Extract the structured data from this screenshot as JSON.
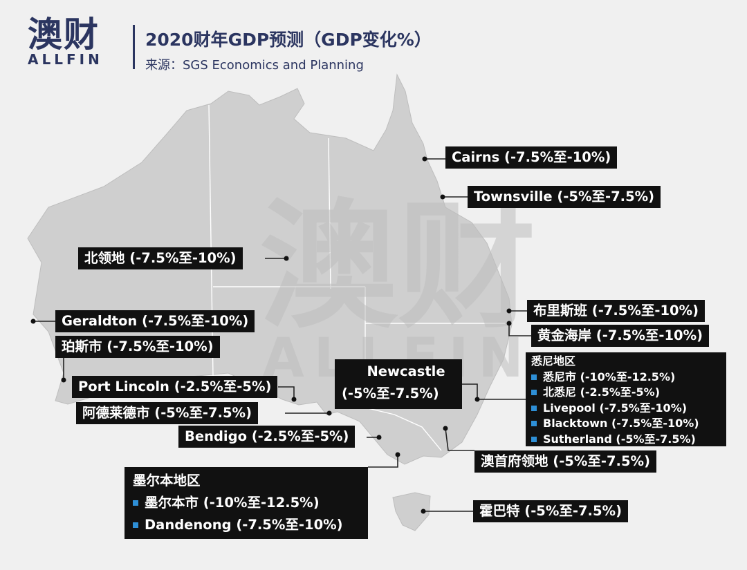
{
  "header": {
    "logo_cn": "澳财",
    "logo_en": "ALLFIN",
    "title": "2020财年GDP预测（GDP变化%）",
    "source": "来源：SGS Economics and Planning"
  },
  "watermark": {
    "cn": "澳财",
    "en": "ALLFIN"
  },
  "colors": {
    "land": "#cfcfcf",
    "background": "#f0f0f0",
    "label_bg": "#111111",
    "bullet": "#2e8fd6",
    "brand": "#2b3560"
  },
  "labels": {
    "cairns": "Cairns (-7.5%至-10%)",
    "townsville": "Townsville (-5%至-7.5%)",
    "nt": "北领地 (-7.5%至-10%)",
    "brisbane": "布里斯班 (-7.5%至-10%)",
    "goldcoast": "黄金海岸 (-7.5%至-10%)",
    "geraldton": "Geraldton (-7.5%至-10%)",
    "perth": "珀斯市 (-7.5%至-10%)",
    "portlincoln": "Port Lincoln (-2.5%至-5%)",
    "adelaide": "阿德莱德市 (-5%至-7.5%)",
    "bendigo": "Bendigo (-2.5%至-5%)",
    "canberra": "澳首府领地 (-5%至-7.5%)",
    "hobart": "霍巴特 (-5%至-7.5%)"
  },
  "newcastle": {
    "name": "Newcastle",
    "range": "(-5%至-7.5%)"
  },
  "sydney_region": {
    "title": "悉尼地区",
    "items": [
      "悉尼市 (-10%至-12.5%)",
      "北悉尼 (-2.5%至-5%)",
      "Livepool (-7.5%至-10%)",
      "Blacktown (-7.5%至-10%)",
      "Sutherland (-5%至-7.5%)"
    ]
  },
  "melbourne_region": {
    "title": "墨尔本地区",
    "items": [
      "墨尔本市 (-10%至-12.5%)",
      "Dandenong (-7.5%至-10%)"
    ]
  }
}
